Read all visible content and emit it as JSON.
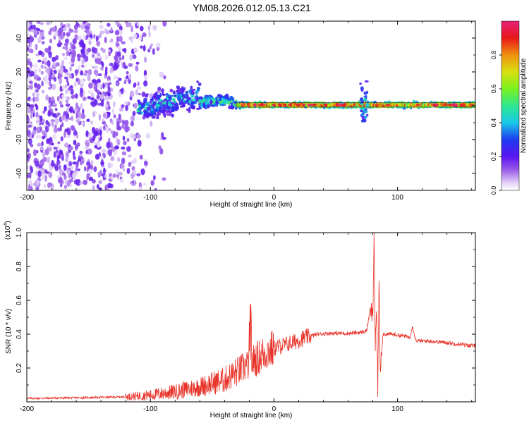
{
  "title": "YM08.2026.012.05.13.C21",
  "colors": {
    "snr_line": "#e8332a",
    "axis": "#000000",
    "background": "#ffffff",
    "colormap": [
      "#ffffff",
      "#c9a8ee",
      "#8a3be6",
      "#5a14f0",
      "#1e1ef0",
      "#18c8e8",
      "#2ee87a",
      "#9ff01a",
      "#e8d010",
      "#f07a10",
      "#e81818",
      "#e81e78"
    ]
  },
  "chart_data": [
    {
      "type": "heatmap",
      "name": "spectrogram",
      "xlabel": "Height of straight line (km)",
      "ylabel": "Frequency (Hz)",
      "xlim": [
        -200,
        163
      ],
      "ylim": [
        -50,
        50
      ],
      "xticks": [
        -200,
        -100,
        0,
        100
      ],
      "yticks": [
        -40,
        -20,
        0,
        20,
        40
      ],
      "colorbar": {
        "label": "Normalized spectral amplitude",
        "range": [
          0,
          1
        ],
        "ticks": [
          "0.0",
          "0.2",
          "0.4",
          "0.6",
          "0.8"
        ]
      },
      "features": [
        {
          "x_range": [
            -200,
            -100
          ],
          "freq_range": [
            -50,
            50
          ],
          "amplitude": 0.15,
          "description": "scattered low amplitude noise"
        },
        {
          "x_range": [
            -110,
            -60
          ],
          "freq_center": 3,
          "freq_spread": 8,
          "amplitude": 0.4
        },
        {
          "x_range": [
            -60,
            -30
          ],
          "freq_center": 2,
          "freq_spread": 4,
          "amplitude": 0.5
        },
        {
          "x_range": [
            -30,
            163
          ],
          "freq_center": 0.5,
          "freq_spread": 1.5,
          "amplitude": 0.9
        },
        {
          "x_range": [
            70,
            76
          ],
          "freq_center": 0,
          "freq_spread": 14,
          "amplitude": 0.45
        }
      ]
    },
    {
      "type": "line",
      "name": "snr",
      "xlabel": "Height of straight line (km)",
      "ylabel": "SNR (10 * v/v)",
      "ylabel_scale": "(x10",
      "ylabel_exponent": "4",
      "ylabel_scale_close": ")",
      "xlim": [
        -200,
        163
      ],
      "ylim": [
        0,
        1.0
      ],
      "xticks": [
        -200,
        -100,
        0,
        100
      ],
      "yticks": [
        0.2,
        0.4,
        0.6,
        0.8,
        1.0
      ],
      "ytick_labels": [
        "0.2",
        "0.4",
        "0.6",
        "0.8",
        "1.0"
      ],
      "series": [
        {
          "name": "SNR",
          "x": [
            -200,
            -150,
            -120,
            -100,
            -80,
            -60,
            -40,
            -25,
            -15,
            -5,
            5,
            15,
            25,
            35,
            45,
            60,
            70,
            75,
            78,
            80,
            81,
            82,
            83,
            84,
            85,
            86,
            88,
            95,
            105,
            110,
            112,
            115,
            125,
            140,
            150,
            163
          ],
          "y": [
            0.02,
            0.025,
            0.03,
            0.04,
            0.06,
            0.09,
            0.13,
            0.2,
            0.25,
            0.3,
            0.33,
            0.35,
            0.38,
            0.4,
            0.405,
            0.405,
            0.41,
            0.42,
            0.55,
            0.5,
            1.0,
            0.3,
            0.55,
            0.08,
            0.7,
            0.2,
            0.4,
            0.4,
            0.39,
            0.38,
            0.45,
            0.36,
            0.36,
            0.35,
            0.34,
            0.33
          ]
        }
      ]
    }
  ]
}
